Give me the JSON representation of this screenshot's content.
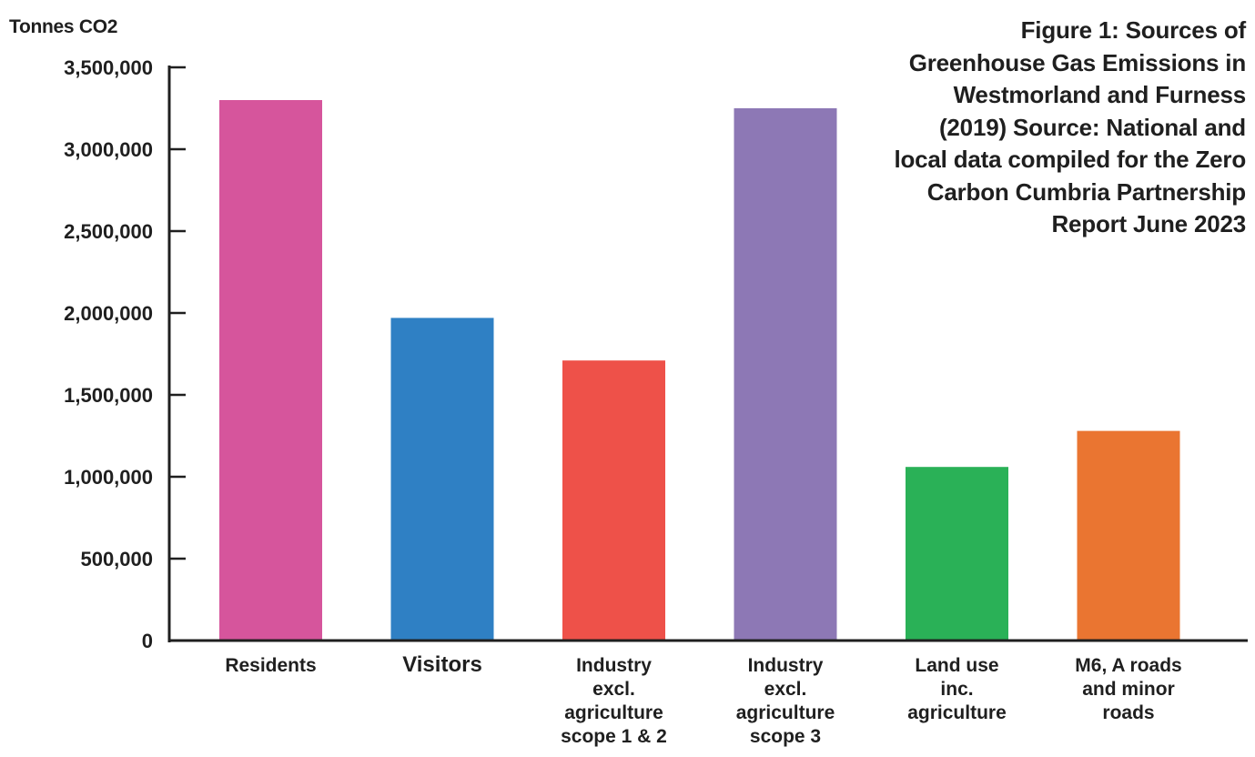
{
  "chart_data": {
    "type": "bar",
    "title": "Figure 1: Sources of Greenhouse Gas Emissions in Westmorland and Furness (2019) Source: National and local data compiled for the Zero Carbon Cumbria Partnership Report June 2023",
    "ylabel": "Tonnes CO2",
    "xlabel": "",
    "ylim": [
      0,
      3500000
    ],
    "yticks": [
      0,
      500000,
      1000000,
      1500000,
      2000000,
      2500000,
      3000000,
      3500000
    ],
    "ytick_labels": [
      "0",
      "500,000",
      "1,000,000",
      "1,500,000",
      "2,000,000",
      "2,500,000",
      "3,000,000",
      "3,500,000"
    ],
    "grid": false,
    "categories": [
      "Residents",
      "Visitors",
      "Industry excl. agriculture scope 1 & 2",
      "Industry excl. agriculture scope 3",
      "Land use inc. agriculture",
      "M6, A roads and minor roads"
    ],
    "category_lines": [
      [
        "Residents"
      ],
      [
        "Visitors"
      ],
      [
        "Industry",
        "excl.",
        "agriculture",
        "scope 1 & 2"
      ],
      [
        "Industry",
        "excl.",
        "agriculture",
        "scope 3"
      ],
      [
        "Land use",
        "inc.",
        "agriculture"
      ],
      [
        "M6, A roads",
        "and minor",
        "roads"
      ]
    ],
    "values": [
      3300000,
      1970000,
      1710000,
      3250000,
      1060000,
      1280000
    ],
    "colors": [
      "#d6559c",
      "#2f80c4",
      "#ee5149",
      "#8d78b5",
      "#2ab157",
      "#ea7531"
    ]
  }
}
